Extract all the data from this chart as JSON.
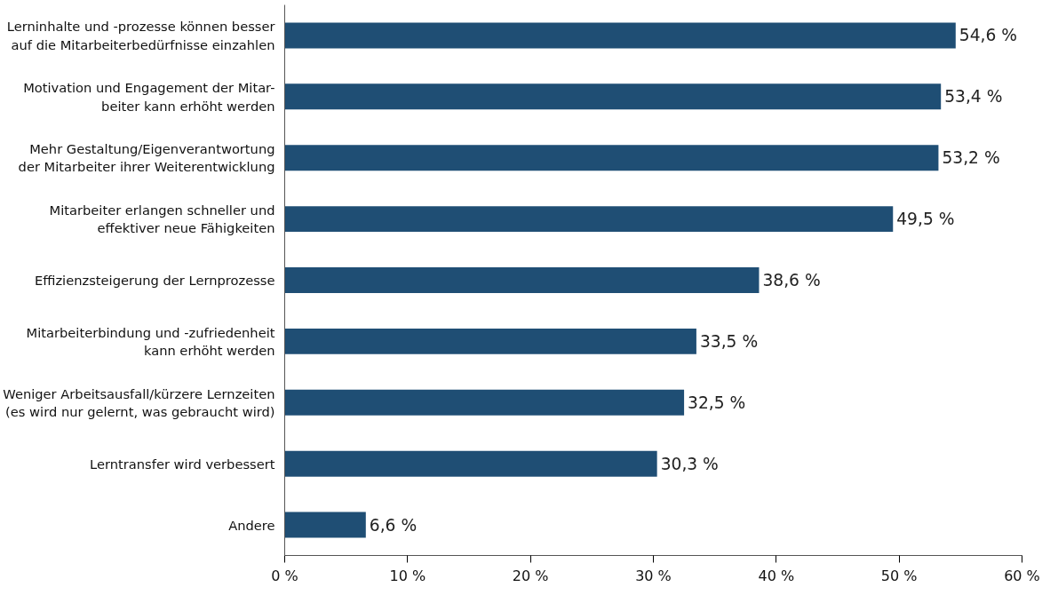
{
  "chart_data": {
    "type": "bar",
    "orientation": "horizontal",
    "categories": [
      "Lerninhalte und -prozesse können besser\nauf die Mitarbeiterbedürfnisse einzahlen",
      "Motivation und Engagement der Mitar-\nbeiter kann erhöht werden",
      "Mehr Gestaltung/Eigenverantwortung\nder Mitarbeiter ihrer Weiterentwicklung",
      "Mitarbeiter erlangen schneller und\neffektiver neue Fähigkeiten",
      "Effizienzsteigerung der Lernprozesse",
      "Mitarbeiterbindung und -zufriedenheit\nkann erhöht werden",
      "Weniger Arbeitsausfall/kürzere Lernzeiten\n(es wird nur gelernt, was gebraucht wird)",
      "Lerntransfer wird verbessert",
      "Andere"
    ],
    "values": [
      54.6,
      53.4,
      53.2,
      49.5,
      38.6,
      33.5,
      32.5,
      30.3,
      6.6
    ],
    "value_labels": [
      "54,6 %",
      "53,4 %",
      "53,2 %",
      "49,5 %",
      "38,6 %",
      "33,5 %",
      "32,5 %",
      "30,3 %",
      "6,6 %"
    ],
    "color": "#1f4e74",
    "xlim": [
      0,
      60
    ],
    "xticks": [
      {
        "value": 0,
        "label": "0 %"
      },
      {
        "value": 10,
        "label": "10 %"
      },
      {
        "value": 20,
        "label": "20 %"
      },
      {
        "value": 30,
        "label": "30 %"
      },
      {
        "value": 40,
        "label": "40 %"
      },
      {
        "value": 50,
        "label": "50 %"
      },
      {
        "value": 60,
        "label": "60 %"
      }
    ],
    "grid": false
  }
}
